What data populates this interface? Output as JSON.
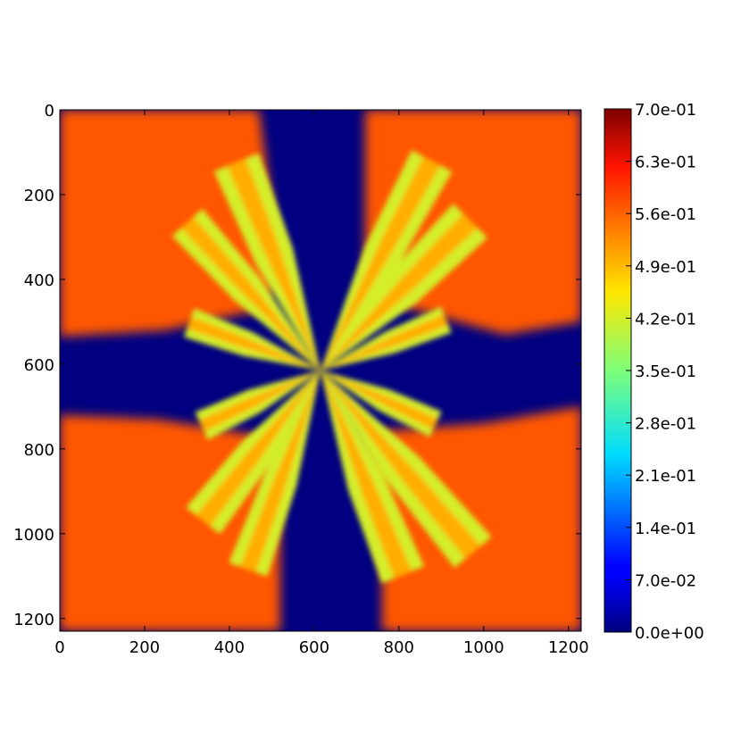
{
  "chart_data": {
    "type": "heatmap",
    "title": "",
    "xlabel": "",
    "ylabel": "",
    "xlim": [
      0,
      1230
    ],
    "ylim": [
      1230,
      0
    ],
    "x_ticks": [
      "0",
      "200",
      "400",
      "600",
      "800",
      "1000",
      "1200"
    ],
    "y_ticks": [
      "0",
      "200",
      "400",
      "600",
      "800",
      "1000",
      "1200"
    ],
    "colormap": "jet",
    "value_range": [
      0.0,
      0.7
    ],
    "colorbar_ticks": [
      "7.0e-01",
      "6.3e-01",
      "5.6e-01",
      "4.9e-01",
      "4.2e-01",
      "3.5e-01",
      "2.8e-01",
      "2.1e-01",
      "1.4e-01",
      "7.0e-02",
      "0.0e+00"
    ],
    "center": [
      615,
      615
    ],
    "description_values": {
      "corner_level": 0.57,
      "channel_level": 0.0,
      "fingers": [
        {
          "angle_deg": 112,
          "length": 530,
          "width": 95
        },
        {
          "angle_deg": 132,
          "length": 470,
          "width": 80
        },
        {
          "angle_deg": 160,
          "length": 330,
          "width": 60
        },
        {
          "angle_deg": 62,
          "length": 560,
          "width": 90
        },
        {
          "angle_deg": 45,
          "length": 500,
          "width": 95
        },
        {
          "angle_deg": 22,
          "length": 320,
          "width": 55
        },
        {
          "angle_deg": 205,
          "length": 310,
          "width": 60
        },
        {
          "angle_deg": 232,
          "length": 450,
          "width": 85
        },
        {
          "angle_deg": 250,
          "length": 500,
          "width": 80
        },
        {
          "angle_deg": 292,
          "length": 520,
          "width": 90
        },
        {
          "angle_deg": 310,
          "length": 560,
          "width": 95
        },
        {
          "angle_deg": 335,
          "length": 300,
          "width": 55
        }
      ]
    }
  }
}
